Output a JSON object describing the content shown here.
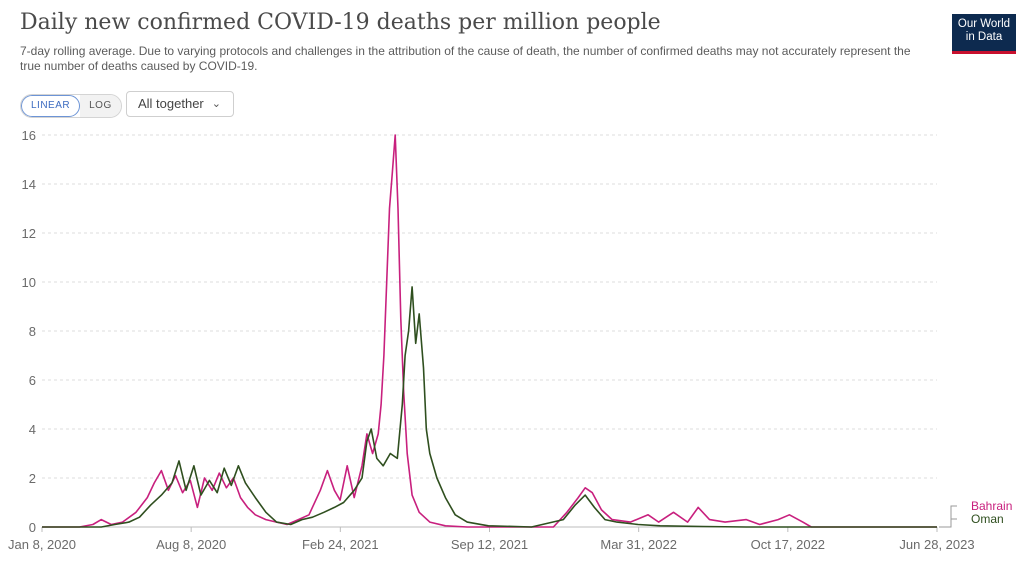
{
  "header": {
    "title": "Daily new confirmed COVID-19 deaths per million people",
    "subtitle": "7-day rolling average. Due to varying protocols and challenges in the attribution of the cause of death, the number of confirmed deaths may not accurately represent the true number of deaths caused by COVID-19."
  },
  "logo": {
    "line1": "Our World",
    "line2": "in Data"
  },
  "controls": {
    "linear_label": "LINEAR",
    "log_label": "LOG",
    "dropdown_value": "All together",
    "dropdown_chevron": "chevron-down-icon"
  },
  "chart_data": {
    "type": "line",
    "title": "Daily new confirmed COVID-19 deaths per million people",
    "xlabel": "",
    "ylabel": "",
    "ylim": [
      0,
      16
    ],
    "xlim": [
      "2020-01-08",
      "2023-06-28"
    ],
    "yticks": [
      0,
      2,
      4,
      6,
      8,
      10,
      12,
      14,
      16
    ],
    "xtick_labels": [
      "Jan 8, 2020",
      "Aug 8, 2020",
      "Feb 24, 2021",
      "Sep 12, 2021",
      "Mar 31, 2022",
      "Oct 17, 2022",
      "Jun 28, 2023"
    ],
    "grid": "horizontal dashed",
    "legend": "right end of lines",
    "series": [
      {
        "name": "Bahrain",
        "color": "#c8207e",
        "points": [
          [
            "2020-01-08",
            0
          ],
          [
            "2020-03-01",
            0
          ],
          [
            "2020-03-20",
            0.1
          ],
          [
            "2020-04-01",
            0.3
          ],
          [
            "2020-04-15",
            0.1
          ],
          [
            "2020-05-01",
            0.2
          ],
          [
            "2020-05-20",
            0.6
          ],
          [
            "2020-06-05",
            1.2
          ],
          [
            "2020-06-15",
            1.8
          ],
          [
            "2020-06-25",
            2.3
          ],
          [
            "2020-07-05",
            1.5
          ],
          [
            "2020-07-15",
            2.1
          ],
          [
            "2020-07-25",
            1.4
          ],
          [
            "2020-08-05",
            1.9
          ],
          [
            "2020-08-15",
            0.8
          ],
          [
            "2020-08-25",
            2.0
          ],
          [
            "2020-09-05",
            1.5
          ],
          [
            "2020-09-15",
            2.2
          ],
          [
            "2020-09-25",
            1.6
          ],
          [
            "2020-10-05",
            2.0
          ],
          [
            "2020-10-15",
            1.2
          ],
          [
            "2020-10-25",
            0.8
          ],
          [
            "2020-11-05",
            0.5
          ],
          [
            "2020-11-20",
            0.3
          ],
          [
            "2020-12-05",
            0.2
          ],
          [
            "2020-12-20",
            0.1
          ],
          [
            "2021-01-05",
            0.3
          ],
          [
            "2021-01-20",
            0.5
          ],
          [
            "2021-02-05",
            1.5
          ],
          [
            "2021-02-15",
            2.3
          ],
          [
            "2021-02-25",
            1.5
          ],
          [
            "2021-03-05",
            1.1
          ],
          [
            "2021-03-15",
            2.5
          ],
          [
            "2021-03-25",
            1.2
          ],
          [
            "2021-04-05",
            2.5
          ],
          [
            "2021-04-12",
            3.8
          ],
          [
            "2021-04-20",
            3.0
          ],
          [
            "2021-04-28",
            3.8
          ],
          [
            "2021-05-02",
            5.0
          ],
          [
            "2021-05-06",
            7.0
          ],
          [
            "2021-05-10",
            10.0
          ],
          [
            "2021-05-14",
            13.0
          ],
          [
            "2021-05-18",
            14.5
          ],
          [
            "2021-05-22",
            16.0
          ],
          [
            "2021-05-26",
            13.0
          ],
          [
            "2021-05-30",
            8.5
          ],
          [
            "2021-06-03",
            5.5
          ],
          [
            "2021-06-08",
            3.0
          ],
          [
            "2021-06-15",
            1.3
          ],
          [
            "2021-06-25",
            0.6
          ],
          [
            "2021-07-10",
            0.2
          ],
          [
            "2021-08-01",
            0.05
          ],
          [
            "2021-09-01",
            0
          ],
          [
            "2021-10-01",
            0
          ],
          [
            "2022-01-01",
            0
          ],
          [
            "2022-01-20",
            0.6
          ],
          [
            "2022-02-05",
            1.2
          ],
          [
            "2022-02-15",
            1.6
          ],
          [
            "2022-02-25",
            1.4
          ],
          [
            "2022-03-10",
            0.7
          ],
          [
            "2022-03-25",
            0.3
          ],
          [
            "2022-04-20",
            0.2
          ],
          [
            "2022-05-15",
            0.5
          ],
          [
            "2022-05-30",
            0.2
          ],
          [
            "2022-06-20",
            0.6
          ],
          [
            "2022-07-10",
            0.2
          ],
          [
            "2022-07-25",
            0.8
          ],
          [
            "2022-08-10",
            0.3
          ],
          [
            "2022-09-01",
            0.2
          ],
          [
            "2022-10-01",
            0.3
          ],
          [
            "2022-10-20",
            0.1
          ],
          [
            "2022-11-15",
            0.3
          ],
          [
            "2022-12-01",
            0.5
          ],
          [
            "2022-12-20",
            0.2
          ],
          [
            "2023-01-01",
            0
          ],
          [
            "2023-06-28",
            0
          ]
        ]
      },
      {
        "name": "Oman",
        "color": "#2f4f1f",
        "points": [
          [
            "2020-01-08",
            0
          ],
          [
            "2020-04-01",
            0
          ],
          [
            "2020-04-20",
            0.1
          ],
          [
            "2020-05-10",
            0.2
          ],
          [
            "2020-05-25",
            0.4
          ],
          [
            "2020-06-10",
            0.9
          ],
          [
            "2020-06-25",
            1.3
          ],
          [
            "2020-07-10",
            1.8
          ],
          [
            "2020-07-20",
            2.7
          ],
          [
            "2020-07-30",
            1.5
          ],
          [
            "2020-08-10",
            2.5
          ],
          [
            "2020-08-20",
            1.3
          ],
          [
            "2020-09-01",
            1.9
          ],
          [
            "2020-09-12",
            1.4
          ],
          [
            "2020-09-22",
            2.4
          ],
          [
            "2020-10-02",
            1.7
          ],
          [
            "2020-10-12",
            2.5
          ],
          [
            "2020-10-22",
            1.8
          ],
          [
            "2020-11-05",
            1.2
          ],
          [
            "2020-11-20",
            0.6
          ],
          [
            "2020-12-05",
            0.2
          ],
          [
            "2020-12-25",
            0.1
          ],
          [
            "2021-01-10",
            0.3
          ],
          [
            "2021-01-25",
            0.4
          ],
          [
            "2021-02-10",
            0.6
          ],
          [
            "2021-02-25",
            0.8
          ],
          [
            "2021-03-10",
            1.0
          ],
          [
            "2021-03-25",
            1.5
          ],
          [
            "2021-04-05",
            2.0
          ],
          [
            "2021-04-12",
            3.5
          ],
          [
            "2021-04-18",
            4.0
          ],
          [
            "2021-04-26",
            2.8
          ],
          [
            "2021-05-05",
            2.5
          ],
          [
            "2021-05-15",
            3.0
          ],
          [
            "2021-05-25",
            2.8
          ],
          [
            "2021-06-01",
            5.0
          ],
          [
            "2021-06-05",
            7.0
          ],
          [
            "2021-06-10",
            8.0
          ],
          [
            "2021-06-15",
            9.8
          ],
          [
            "2021-06-20",
            7.5
          ],
          [
            "2021-06-25",
            8.7
          ],
          [
            "2021-07-01",
            6.5
          ],
          [
            "2021-07-05",
            4.0
          ],
          [
            "2021-07-10",
            3.0
          ],
          [
            "2021-07-20",
            2.0
          ],
          [
            "2021-08-01",
            1.2
          ],
          [
            "2021-08-15",
            0.5
          ],
          [
            "2021-09-01",
            0.2
          ],
          [
            "2021-10-01",
            0.05
          ],
          [
            "2021-12-01",
            0
          ],
          [
            "2022-01-15",
            0.3
          ],
          [
            "2022-02-01",
            0.9
          ],
          [
            "2022-02-15",
            1.3
          ],
          [
            "2022-02-28",
            0.8
          ],
          [
            "2022-03-15",
            0.3
          ],
          [
            "2022-04-01",
            0.2
          ],
          [
            "2022-05-01",
            0.1
          ],
          [
            "2022-06-01",
            0.05
          ],
          [
            "2022-08-01",
            0.02
          ],
          [
            "2022-10-01",
            0
          ],
          [
            "2023-06-28",
            0
          ]
        ]
      }
    ]
  }
}
